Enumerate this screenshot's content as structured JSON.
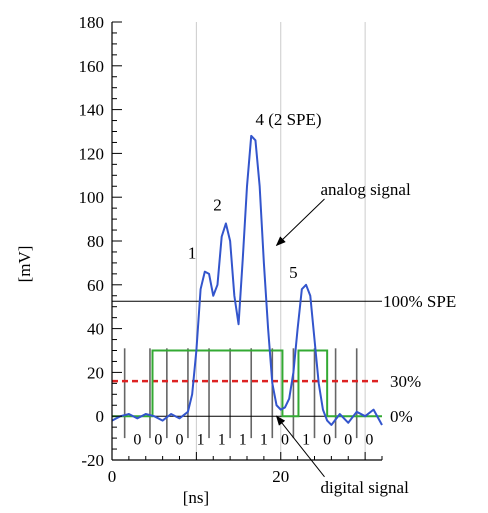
{
  "chart_data": {
    "type": "line",
    "title": "",
    "xlabel": "[ns]",
    "ylabel": "[mV]",
    "xlim": [
      0,
      32
    ],
    "ylim": [
      -20,
      180
    ],
    "x_ticks": [
      0,
      20
    ],
    "y_ticks": [
      -20,
      0,
      20,
      40,
      60,
      80,
      100,
      120,
      140,
      160,
      180
    ],
    "vertical_gridlines_x": [
      10,
      20,
      30
    ],
    "series": [
      {
        "color": "#3355cc",
        "x": [
          0,
          1,
          2,
          3,
          4,
          5,
          6,
          7,
          8,
          9,
          9.5,
          10,
          10.5,
          11,
          11.5,
          12,
          12.5,
          13,
          13.5,
          14,
          14.5,
          15,
          15.5,
          16,
          16.5,
          17,
          17.5,
          18,
          18.5,
          19,
          19.5,
          20,
          20.5,
          21,
          21.5,
          22,
          22.5,
          23,
          23.5,
          24,
          24.5,
          25,
          25.5,
          26,
          27,
          28,
          29,
          30,
          31,
          32
        ],
        "y": [
          -2,
          0,
          1,
          -1,
          1,
          0,
          -2,
          1,
          -1,
          2,
          10,
          30,
          58,
          66,
          65,
          55,
          60,
          82,
          88,
          80,
          55,
          42,
          72,
          105,
          128,
          126,
          105,
          70,
          40,
          15,
          5,
          3,
          4,
          8,
          20,
          40,
          58,
          60,
          55,
          35,
          15,
          3,
          -2,
          -4,
          1,
          -3,
          2,
          0,
          3,
          -4
        ]
      }
    ],
    "digital_signal": {
      "color": "#33aa33",
      "x": [
        0,
        4.8,
        4.8,
        10,
        10,
        20.2,
        20.2,
        22.1,
        22.1,
        25.5,
        25.5,
        32
      ],
      "y": [
        0,
        0,
        30,
        30,
        30,
        30,
        0,
        0,
        30,
        30,
        0,
        0
      ]
    },
    "levels": [
      {
        "label": "100% SPE",
        "value": 52.5,
        "color": "#000000",
        "style": "solid"
      },
      {
        "label": "30%",
        "value": 16,
        "color": "#dd2222",
        "style": "dashed"
      },
      {
        "label": "0%",
        "value": 0,
        "color": "#000000",
        "style": "solid"
      }
    ],
    "sampling_marks_x": [
      1.5,
      4.5,
      6.5,
      9,
      11.5,
      14,
      16.5,
      19,
      21.5,
      24,
      26.5,
      29
    ],
    "bits": [
      {
        "x": 3,
        "label": "0"
      },
      {
        "x": 5.5,
        "label": "0"
      },
      {
        "x": 8,
        "label": "0"
      },
      {
        "x": 10.5,
        "label": "1"
      },
      {
        "x": 13,
        "label": "1"
      },
      {
        "x": 15.5,
        "label": "1"
      },
      {
        "x": 18,
        "label": "1"
      },
      {
        "x": 20.5,
        "label": "0"
      },
      {
        "x": 23,
        "label": "1"
      },
      {
        "x": 25.5,
        "label": "0"
      },
      {
        "x": 28,
        "label": "0"
      },
      {
        "x": 30.5,
        "label": "0"
      }
    ],
    "peak_labels": [
      {
        "label": "1",
        "x": 9.5,
        "y": 72
      },
      {
        "label": "2",
        "x": 12.5,
        "y": 94
      },
      {
        "label": "4 (2 SPE)",
        "x": 17,
        "y": 133
      },
      {
        "label": "5",
        "x": 21.5,
        "y": 63
      }
    ],
    "annotations": [
      {
        "label": "analog signal",
        "x": 24,
        "y": 101,
        "target_x": 19.5,
        "target_y": 78
      },
      {
        "label": "digital signal",
        "x": 24,
        "y": -35,
        "target_x": 19.5,
        "target_y": 0
      }
    ]
  }
}
